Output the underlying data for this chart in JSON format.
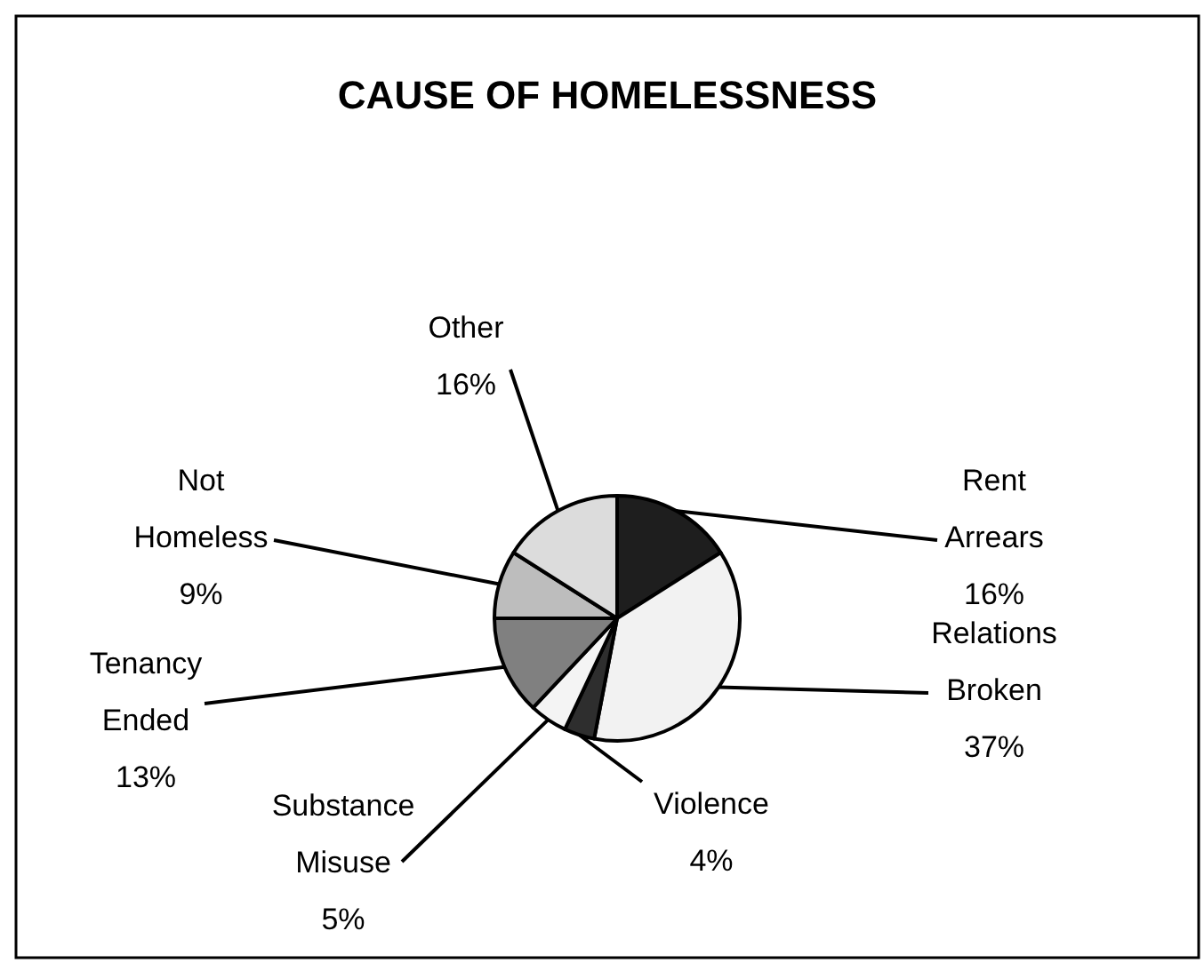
{
  "chart_data": {
    "type": "pie",
    "title": "CAUSE OF HOMELESSNESS",
    "categories": [
      "Rent Arrears",
      "Relations Broken",
      "Violence",
      "Substance Misuse",
      "Tenancy Ended",
      "Not Homeless",
      "Other"
    ],
    "values": [
      16,
      37,
      4,
      5,
      13,
      9,
      16
    ],
    "colors": [
      "#1e1e1e",
      "#f2f2f2",
      "#2e2e2e",
      "#f4f4f4",
      "#808080",
      "#bdbdbd",
      "#dcdcdc"
    ],
    "value_labels": [
      "16%",
      "37%",
      "4%",
      "5%",
      "13%",
      "9%",
      "16%"
    ]
  }
}
